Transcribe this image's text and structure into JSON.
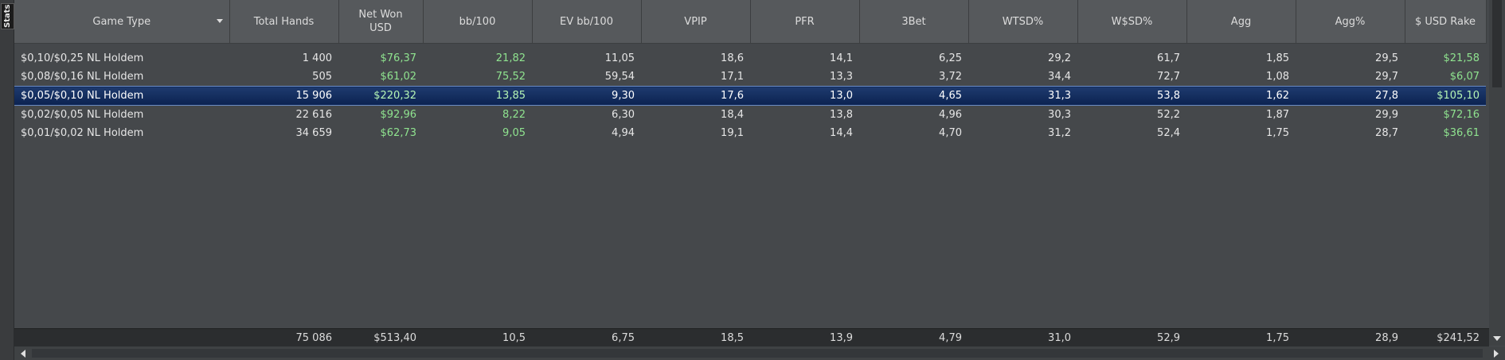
{
  "side_tab": {
    "label": "Stats"
  },
  "columns": [
    "Game Type",
    "Total Hands",
    "Net Won\nUSD",
    "bb/100",
    "EV bb/100",
    "VPIP",
    "PFR",
    "3Bet",
    "WTSD%",
    "W$SD%",
    "Agg",
    "Agg%",
    "$ USD Rake"
  ],
  "rows": [
    {
      "game": "$0,10/$0,25 NL Holdem",
      "hands": "1 400",
      "net_won": "$76,37",
      "bb100": "21,82",
      "ev_bb100": "11,05",
      "vpip": "18,6",
      "pfr": "14,1",
      "threebet": "6,25",
      "wtsd": "29,2",
      "wsd": "61,7",
      "agg": "1,85",
      "aggp": "29,5",
      "rake": "$21,58"
    },
    {
      "game": "$0,08/$0,16 NL Holdem",
      "hands": "505",
      "net_won": "$61,02",
      "bb100": "75,52",
      "ev_bb100": "59,54",
      "vpip": "17,1",
      "pfr": "13,3",
      "threebet": "3,72",
      "wtsd": "34,4",
      "wsd": "72,7",
      "agg": "1,08",
      "aggp": "29,7",
      "rake": "$6,07"
    },
    {
      "game": "$0,05/$0,10 NL Holdem",
      "hands": "15 906",
      "net_won": "$220,32",
      "bb100": "13,85",
      "ev_bb100": "9,30",
      "vpip": "17,6",
      "pfr": "13,0",
      "threebet": "4,65",
      "wtsd": "31,3",
      "wsd": "53,8",
      "agg": "1,62",
      "aggp": "27,8",
      "rake": "$105,10",
      "selected": true
    },
    {
      "game": "$0,02/$0,05 NL Holdem",
      "hands": "22 616",
      "net_won": "$92,96",
      "bb100": "8,22",
      "ev_bb100": "6,30",
      "vpip": "18,4",
      "pfr": "13,8",
      "threebet": "4,96",
      "wtsd": "30,3",
      "wsd": "52,2",
      "agg": "1,87",
      "aggp": "29,9",
      "rake": "$72,16"
    },
    {
      "game": "$0,01/$0,02 NL Holdem",
      "hands": "34 659",
      "net_won": "$62,73",
      "bb100": "9,05",
      "ev_bb100": "4,94",
      "vpip": "19,1",
      "pfr": "14,4",
      "threebet": "4,70",
      "wtsd": "31,2",
      "wsd": "52,4",
      "agg": "1,75",
      "aggp": "28,7",
      "rake": "$36,61"
    }
  ],
  "totals": {
    "game": "",
    "hands": "75 086",
    "net_won": "$513,40",
    "bb100": "10,5",
    "ev_bb100": "6,75",
    "vpip": "18,5",
    "pfr": "13,9",
    "threebet": "4,79",
    "wtsd": "31,0",
    "wsd": "52,9",
    "agg": "1,75",
    "aggp": "28,9",
    "rake": "$241,52"
  },
  "colors": {
    "background": "#45484b",
    "header": "#56595c",
    "positive_value": "#8fe38f",
    "selected_row": "#0b2250",
    "totals_bar": "#2b2d2f"
  }
}
